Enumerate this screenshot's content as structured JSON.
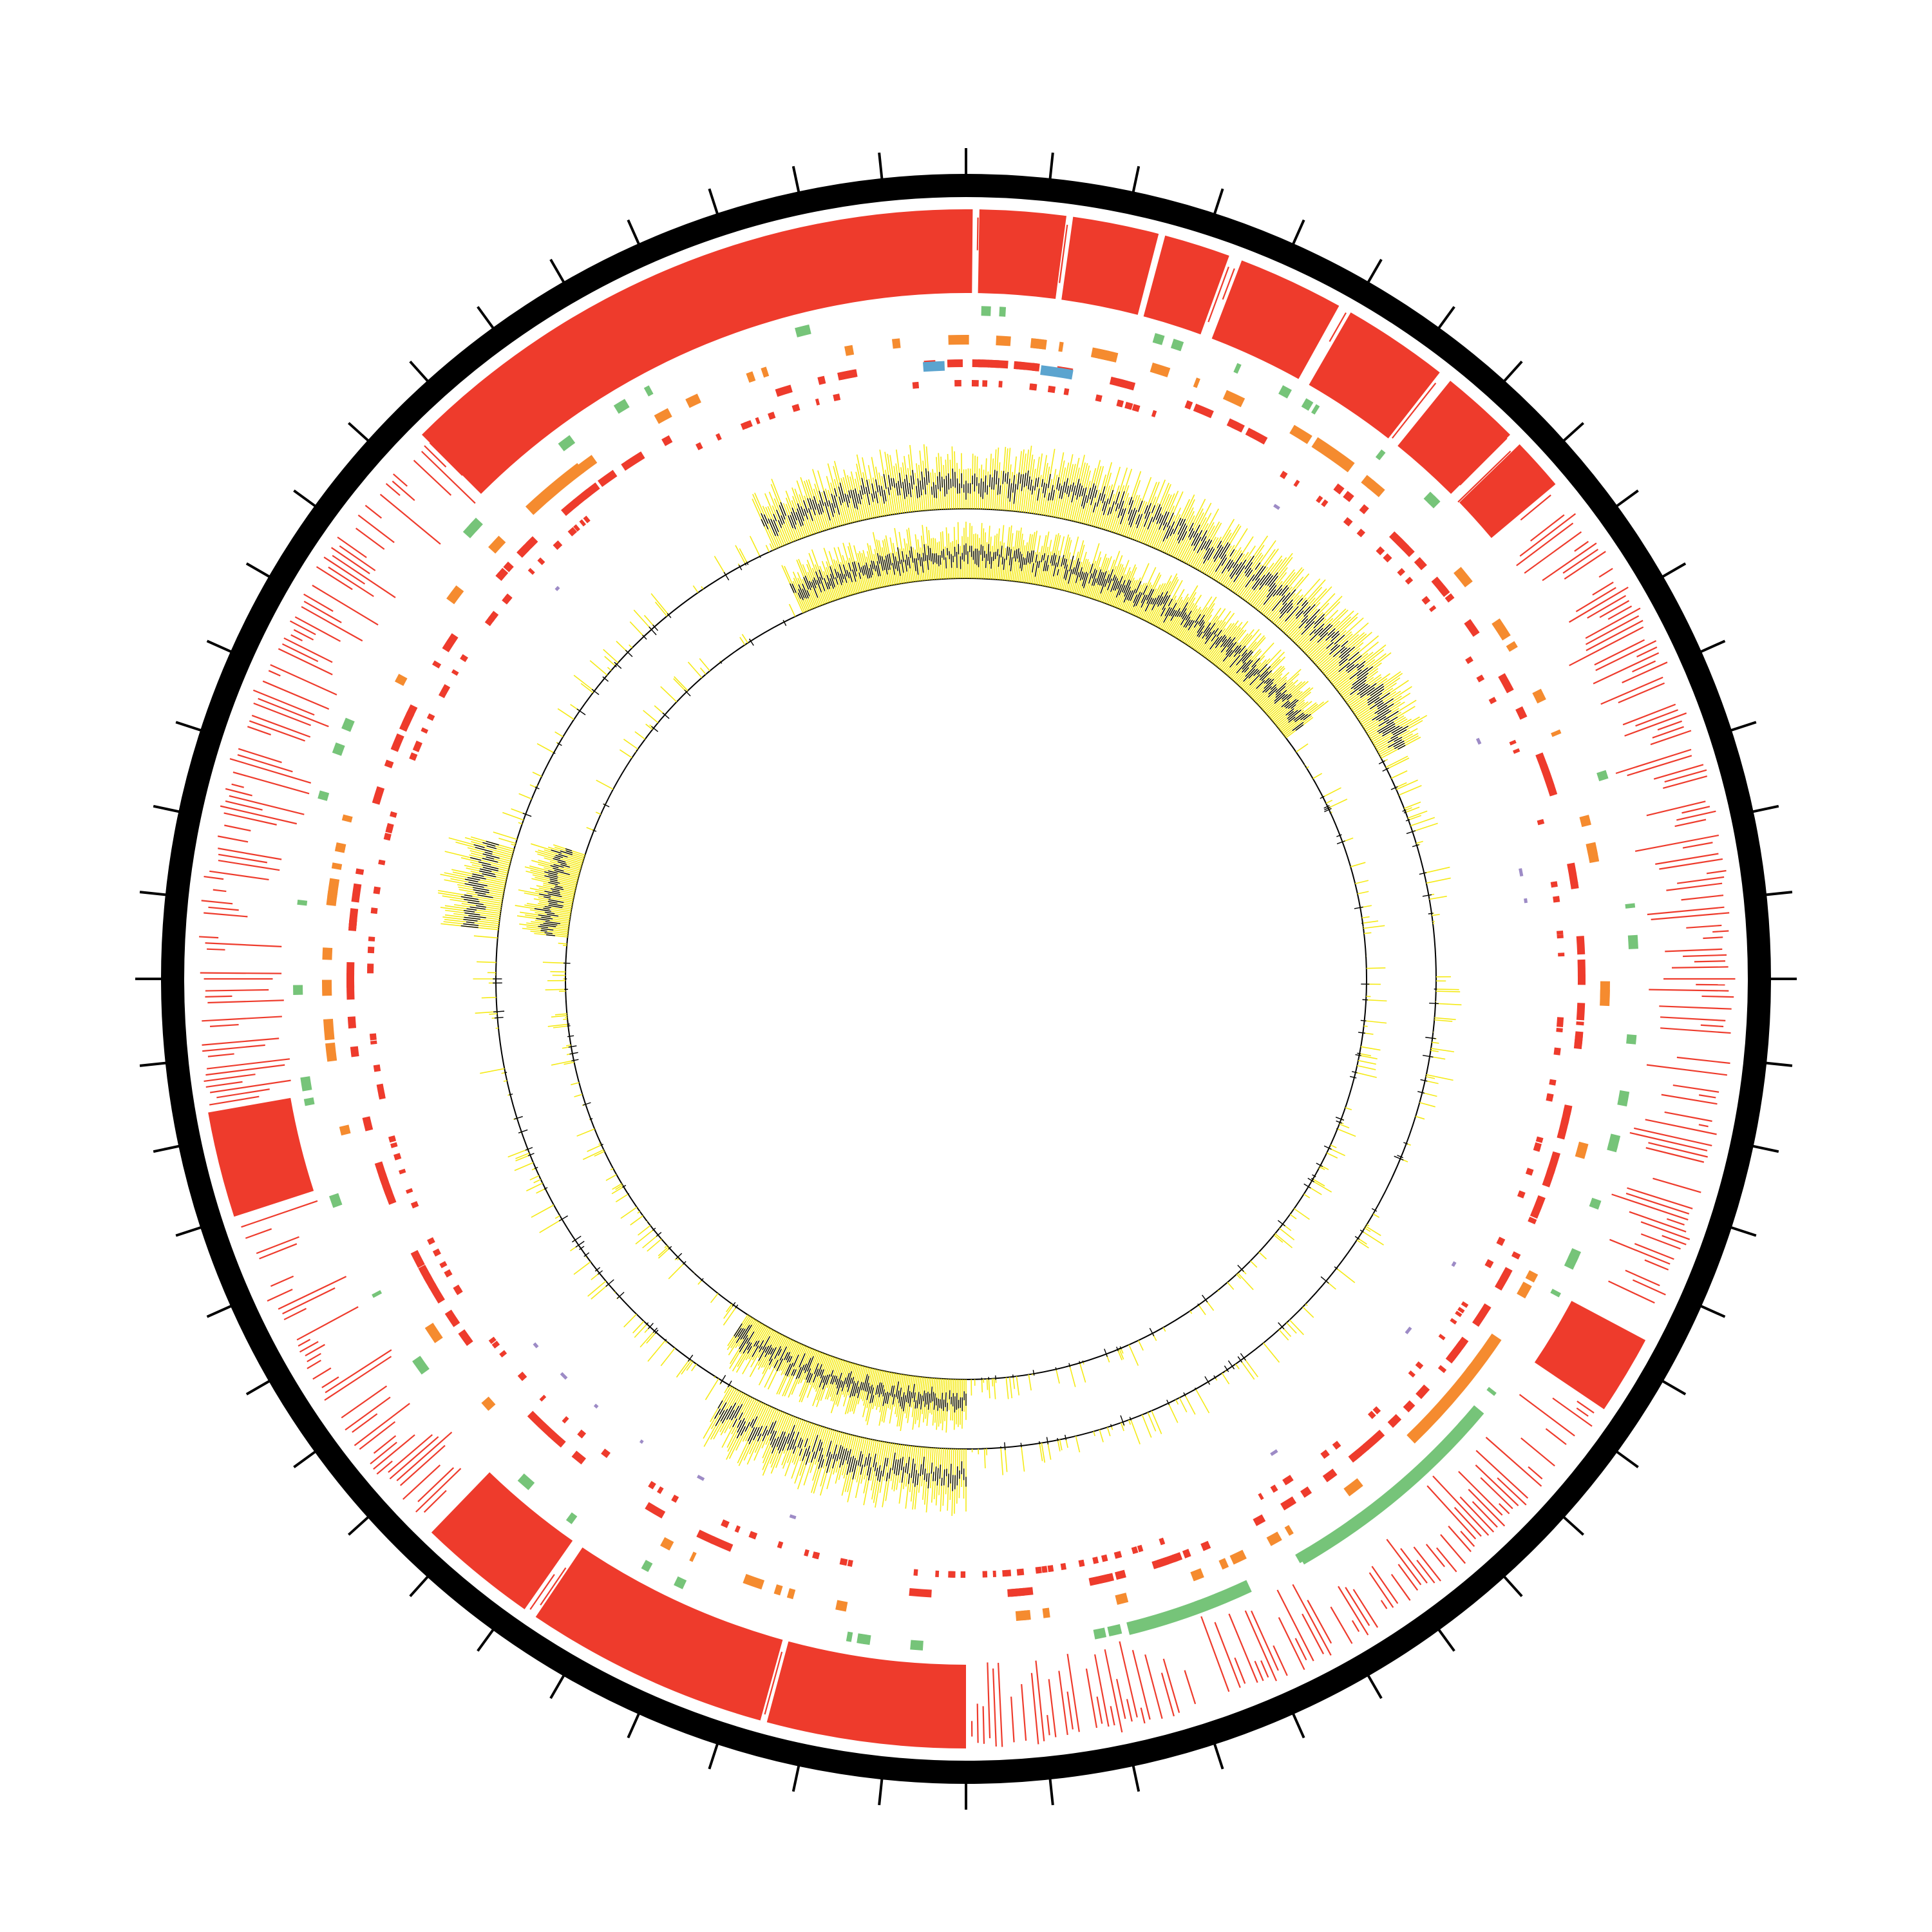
{
  "diagram": {
    "type": "circular-genome-map",
    "tick_count": 60,
    "colors": {
      "backbone": "#000000",
      "feature_red": "#ee3b2c",
      "feature_orange": "#f58b2f",
      "feature_green": "#76c479",
      "feature_blue": "#5ba4cf",
      "feature_purple": "#9d8bc6",
      "skew_positive": "#f5ea16",
      "skew_negative": "#000000",
      "baseline": "#000000"
    },
    "outer_feature_blocks": [
      {
        "from_deg": 315,
        "to_deg": 0.5,
        "color": "feature_red"
      },
      {
        "from_deg": 1,
        "to_deg": 7.5,
        "color": "feature_red"
      },
      {
        "from_deg": 8,
        "to_deg": 14.5,
        "color": "feature_red"
      },
      {
        "from_deg": 15,
        "to_deg": 20,
        "color": "feature_red"
      },
      {
        "from_deg": 21,
        "to_deg": 29,
        "color": "feature_red"
      },
      {
        "from_deg": 30,
        "to_deg": 38,
        "color": "feature_red"
      },
      {
        "from_deg": 39,
        "to_deg": 45,
        "color": "feature_red"
      },
      {
        "from_deg": 46,
        "to_deg": 50,
        "color": "feature_red"
      },
      {
        "from_deg": 252,
        "to_deg": 260,
        "color": "feature_red"
      },
      {
        "from_deg": 180,
        "to_deg": 195,
        "color": "feature_red"
      },
      {
        "from_deg": 195.5,
        "to_deg": 214,
        "color": "feature_red"
      },
      {
        "from_deg": 215,
        "to_deg": 224,
        "color": "feature_red"
      },
      {
        "from_deg": 118,
        "to_deg": 124,
        "color": "feature_red"
      }
    ],
    "inner_arcs": [
      {
        "from_deg": 130,
        "to_deg": 150,
        "color": "feature_green"
      },
      {
        "from_deg": 155,
        "to_deg": 166,
        "color": "feature_green"
      },
      {
        "from_deg": 124,
        "to_deg": 136,
        "color": "feature_orange"
      },
      {
        "from_deg": 33,
        "to_deg": 37,
        "color": "feature_orange"
      },
      {
        "from_deg": 317,
        "to_deg": 323,
        "color": "feature_orange"
      },
      {
        "from_deg": 356,
        "to_deg": 358,
        "color": "feature_blue"
      },
      {
        "from_deg": 7,
        "to_deg": 10,
        "color": "feature_blue"
      }
    ],
    "skew_tracks": [
      {
        "dense_from_deg": 336,
        "dense_to_deg": 62,
        "second_from_deg": 180,
        "second_to_deg": 210,
        "third_from_deg": 276,
        "third_to_deg": 286
      },
      {
        "dense_from_deg": 336,
        "dense_to_deg": 53,
        "second_from_deg": 180,
        "second_to_deg": 213,
        "third_from_deg": 276,
        "third_to_deg": 288
      }
    ]
  }
}
